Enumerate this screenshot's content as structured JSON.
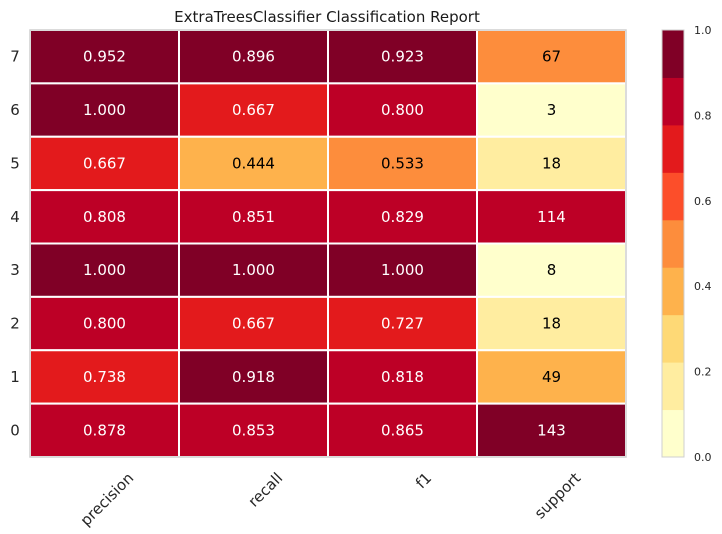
{
  "chart_data": {
    "type": "heatmap",
    "title": "ExtraTreesClassifier Classification Report",
    "columns": [
      "precision",
      "recall",
      "f1",
      "support"
    ],
    "rows": [
      "7",
      "6",
      "5",
      "4",
      "3",
      "2",
      "1",
      "0"
    ],
    "values": [
      [
        0.952,
        0.896,
        0.923,
        67
      ],
      [
        1.0,
        0.667,
        0.8,
        3
      ],
      [
        0.667,
        0.444,
        0.533,
        18
      ],
      [
        0.808,
        0.851,
        0.829,
        114
      ],
      [
        1.0,
        1.0,
        1.0,
        8
      ],
      [
        0.8,
        0.667,
        0.727,
        18
      ],
      [
        0.738,
        0.918,
        0.818,
        49
      ],
      [
        0.878,
        0.853,
        0.865,
        143
      ]
    ],
    "labels": [
      [
        "0.952",
        "0.896",
        "0.923",
        "67"
      ],
      [
        "1.000",
        "0.667",
        "0.800",
        "3"
      ],
      [
        "0.667",
        "0.444",
        "0.533",
        "18"
      ],
      [
        "0.808",
        "0.851",
        "0.829",
        "114"
      ],
      [
        "1.000",
        "1.000",
        "1.000",
        "8"
      ],
      [
        "0.800",
        "0.667",
        "0.727",
        "18"
      ],
      [
        "0.738",
        "0.918",
        "0.818",
        "49"
      ],
      [
        "0.878",
        "0.853",
        "0.865",
        "143"
      ]
    ],
    "support_max": 143,
    "colorbar": {
      "range": [
        0.0,
        1.0
      ],
      "ticks": [
        "0.0",
        "0.2",
        "0.4",
        "0.6",
        "0.8",
        "1.0"
      ],
      "colors": [
        "#ffffcc",
        "#ffeda0",
        "#fed976",
        "#feb24c",
        "#fd8d3c",
        "#fc4e2a",
        "#e31a1c",
        "#bd0026",
        "#800026"
      ]
    },
    "grid": false
  }
}
